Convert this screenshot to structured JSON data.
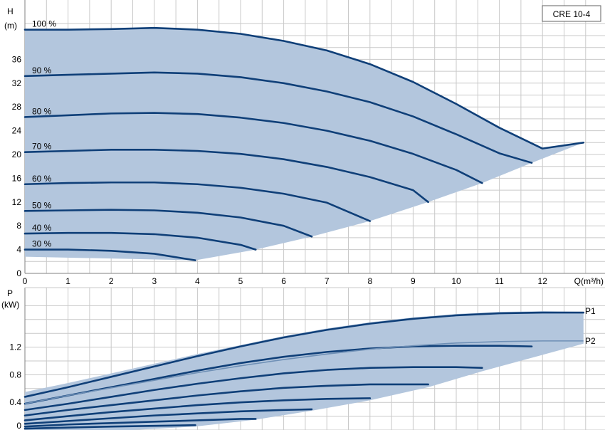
{
  "chart_data": [
    {
      "type": "line",
      "title": "CRE 10-4",
      "ylabel_top": "H",
      "ylabel_unit": "(m)",
      "xlabel": "Q(m³/h)",
      "xlim": [
        0,
        13.3
      ],
      "ylim": [
        0,
        41
      ],
      "xticks": [
        "0",
        "1",
        "2",
        "3",
        "4",
        "5",
        "6",
        "7",
        "8",
        "9",
        "10",
        "11",
        "12"
      ],
      "yticks": [
        "0",
        "4",
        "8",
        "12",
        "16",
        "20",
        "24",
        "28",
        "32",
        "36"
      ],
      "grid": true,
      "series": [
        {
          "name": "100 %",
          "x": [
            0,
            1,
            2,
            3,
            4,
            5,
            6,
            7,
            8,
            9,
            10,
            11,
            12,
            12.95
          ],
          "y": [
            41.0,
            41.0,
            41.1,
            41.3,
            41.0,
            40.3,
            39.1,
            37.5,
            35.2,
            32.2,
            28.5,
            24.5,
            21.0,
            22.0
          ]
        },
        {
          "name": "90 %",
          "x": [
            0,
            1,
            2,
            3,
            4,
            5,
            6,
            7,
            8,
            9,
            10,
            11,
            11.75
          ],
          "y": [
            33.2,
            33.4,
            33.6,
            33.8,
            33.6,
            33.0,
            32.0,
            30.6,
            28.8,
            26.4,
            23.4,
            20.2,
            18.6
          ]
        },
        {
          "name": "80 %",
          "x": [
            0,
            1,
            2,
            3,
            4,
            5,
            6,
            7,
            8,
            9,
            10,
            10.6
          ],
          "y": [
            26.3,
            26.6,
            26.9,
            27.0,
            26.8,
            26.2,
            25.3,
            24.0,
            22.3,
            20.1,
            17.4,
            15.2
          ]
        },
        {
          "name": "70 %",
          "x": [
            0,
            1,
            2,
            3,
            4,
            5,
            6,
            7,
            8,
            9,
            9.35
          ],
          "y": [
            20.4,
            20.6,
            20.8,
            20.8,
            20.6,
            20.1,
            19.2,
            17.9,
            16.2,
            14.0,
            12.0
          ]
        },
        {
          "name": "60 %",
          "x": [
            0,
            1,
            2,
            3,
            4,
            5,
            6,
            7,
            8
          ],
          "y": [
            15.0,
            15.2,
            15.3,
            15.3,
            15.0,
            14.4,
            13.4,
            11.9,
            8.8
          ]
        },
        {
          "name": "50 %",
          "x": [
            0,
            1,
            2,
            3,
            4,
            5,
            6,
            6.65
          ],
          "y": [
            10.5,
            10.6,
            10.7,
            10.6,
            10.2,
            9.4,
            8.0,
            6.2
          ]
        },
        {
          "name": "40 %",
          "x": [
            0,
            1,
            2,
            3,
            4,
            5,
            5.35
          ],
          "y": [
            6.7,
            6.8,
            6.8,
            6.6,
            6.0,
            4.8,
            4.0
          ]
        },
        {
          "name": "30 %",
          "x": [
            0,
            1,
            2,
            3,
            3.95
          ],
          "y": [
            4.0,
            4.0,
            3.8,
            3.3,
            2.2
          ]
        }
      ],
      "percent_labels": [
        "100 %",
        "90 %",
        "80 %",
        "70 %",
        "60 %",
        "50 %",
        "40 %",
        "30 %"
      ]
    },
    {
      "type": "line",
      "ylabel_top": "P",
      "ylabel_unit": "(kW)",
      "xlim": [
        0,
        13.3
      ],
      "ylim": [
        0,
        1.78
      ],
      "yticks": [
        "0",
        "0.4",
        "0.8",
        "1.2"
      ],
      "grid": true,
      "labels": [
        "P1",
        "P2"
      ],
      "envelope_top": {
        "x": [
          0,
          1,
          2,
          3,
          4,
          5,
          6,
          7,
          8,
          9,
          10,
          11,
          12,
          12.95
        ],
        "y": [
          0.55,
          0.68,
          0.82,
          0.96,
          1.1,
          1.23,
          1.36,
          1.47,
          1.56,
          1.63,
          1.68,
          1.71,
          1.72,
          1.71
        ]
      },
      "envelope_bottom": {
        "x": [
          0,
          12.95
        ],
        "y": [
          0,
          1.71
        ]
      },
      "p1_curves": [
        {
          "x": [
            0,
            1,
            2,
            3,
            4,
            5,
            6,
            7,
            8,
            9,
            10,
            11,
            12,
            12.95
          ],
          "y": [
            0.48,
            0.62,
            0.77,
            0.92,
            1.07,
            1.21,
            1.34,
            1.45,
            1.54,
            1.61,
            1.66,
            1.69,
            1.7,
            1.7
          ]
        },
        {
          "x": [
            0,
            1,
            2,
            3,
            4,
            5,
            6,
            7,
            8,
            9,
            10,
            11,
            11.75
          ],
          "y": [
            0.38,
            0.5,
            0.62,
            0.74,
            0.86,
            0.97,
            1.06,
            1.13,
            1.18,
            1.21,
            1.22,
            1.22,
            1.21
          ]
        },
        {
          "x": [
            0,
            1,
            2,
            3,
            4,
            5,
            6,
            7,
            8,
            9,
            10,
            10.6
          ],
          "y": [
            0.29,
            0.38,
            0.48,
            0.58,
            0.67,
            0.75,
            0.82,
            0.87,
            0.9,
            0.91,
            0.91,
            0.9
          ]
        },
        {
          "x": [
            0,
            1,
            2,
            3,
            4,
            5,
            6,
            7,
            8,
            9,
            9.35
          ],
          "y": [
            0.21,
            0.29,
            0.36,
            0.43,
            0.5,
            0.56,
            0.61,
            0.64,
            0.66,
            0.66,
            0.66
          ]
        },
        {
          "x": [
            0,
            1,
            2,
            3,
            4,
            5,
            6,
            7,
            8
          ],
          "y": [
            0.14,
            0.2,
            0.26,
            0.31,
            0.36,
            0.4,
            0.43,
            0.45,
            0.46
          ]
        },
        {
          "x": [
            0,
            1,
            2,
            3,
            4,
            5,
            6,
            6.65
          ],
          "y": [
            0.09,
            0.13,
            0.17,
            0.21,
            0.24,
            0.27,
            0.29,
            0.3
          ]
        },
        {
          "x": [
            0,
            1,
            2,
            3,
            4,
            5,
            5.35
          ],
          "y": [
            0.05,
            0.08,
            0.1,
            0.12,
            0.14,
            0.16,
            0.16
          ]
        },
        {
          "x": [
            0,
            1,
            2,
            3,
            3.95
          ],
          "y": [
            0.02,
            0.035,
            0.05,
            0.06,
            0.07
          ]
        }
      ],
      "p2_curve": {
        "x": [
          0,
          1,
          2,
          3,
          4,
          5,
          6,
          7,
          8,
          9,
          10,
          11,
          12,
          12.95
        ],
        "y": [
          0.38,
          0.5,
          0.61,
          0.72,
          0.83,
          0.93,
          1.02,
          1.1,
          1.17,
          1.22,
          1.26,
          1.28,
          1.29,
          1.29
        ]
      }
    }
  ],
  "colors": {
    "fill": "#b3c6dd",
    "curve": "#0f3f78",
    "grid": "#c9c9c9"
  }
}
